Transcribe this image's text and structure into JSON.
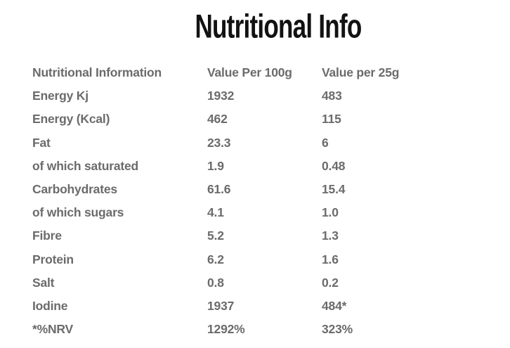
{
  "title": "Nutritional Info",
  "colors": {
    "background": "#ffffff",
    "title_text": "#121212",
    "table_text": "#6b6b6b"
  },
  "table": {
    "headers": [
      "Nutritional Information",
      "Value Per 100g",
      "Value per 25g"
    ],
    "rows": [
      {
        "label": "Energy Kj",
        "per100g": "1932",
        "per25g": "483"
      },
      {
        "label": "Energy (Kcal)",
        "per100g": "462",
        "per25g": "115"
      },
      {
        "label": "Fat",
        "per100g": "23.3",
        "per25g": "6"
      },
      {
        "label": "of which saturated",
        "per100g": "1.9",
        "per25g": "0.48"
      },
      {
        "label": "Carbohydrates",
        "per100g": "61.6",
        "per25g": "15.4"
      },
      {
        "label": "of which sugars",
        "per100g": "4.1",
        "per25g": "1.0"
      },
      {
        "label": "Fibre",
        "per100g": "5.2",
        "per25g": "1.3"
      },
      {
        "label": "Protein",
        "per100g": "6.2",
        "per25g": "1.6"
      },
      {
        "label": "Salt",
        "per100g": "0.8",
        "per25g": "0.2"
      },
      {
        "label": "Iodine",
        "per100g": "1937",
        "per25g": "484*"
      },
      {
        "label": "*%NRV",
        "per100g": "1292%",
        "per25g": "323%"
      }
    ]
  }
}
